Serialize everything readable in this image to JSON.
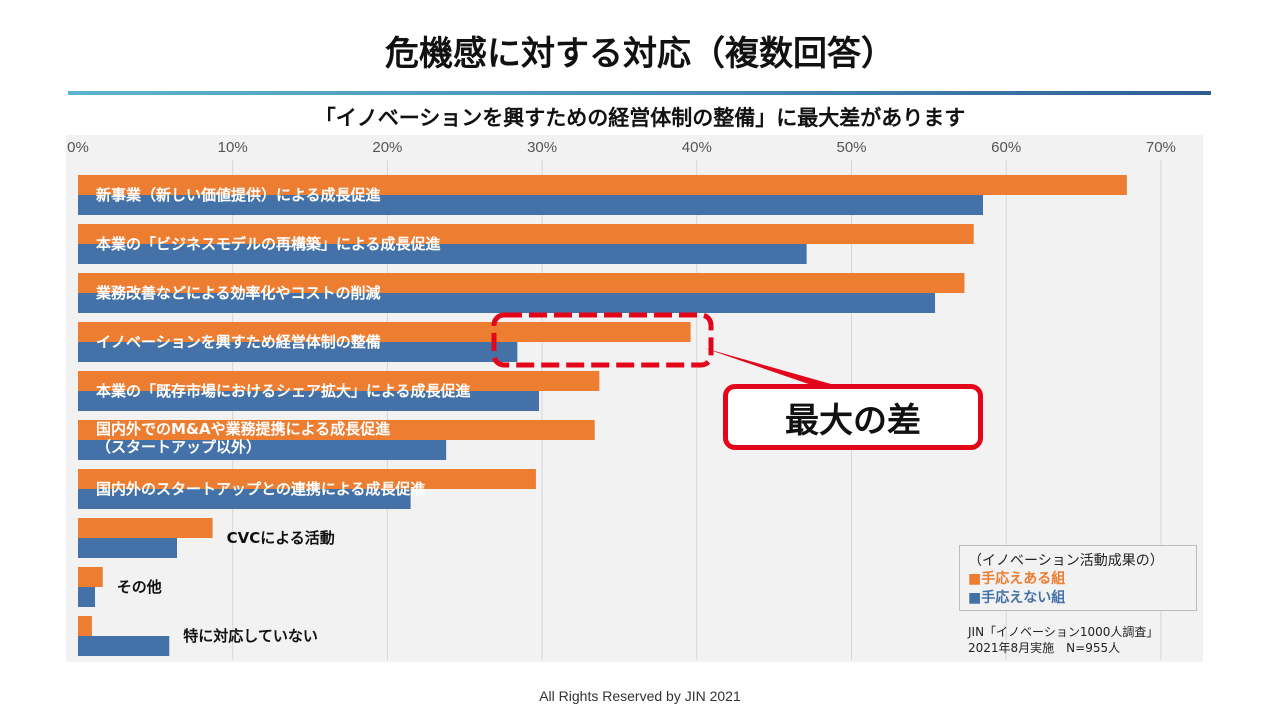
{
  "title": "危機感に対する対応（複数回答）",
  "subtitle": "「イノベーションを興すための経営体制の整備」に最大差があります",
  "footer": "All Rights Reserved by JIN 2021",
  "legend": {
    "title": "（イノベーション活動成果の）",
    "items": [
      "■手応えある組",
      "■手応えない組"
    ]
  },
  "source": [
    "JIN「イノベーション1000人調査」",
    "2021年8月実施　N=955人"
  ],
  "callout": "最大の差",
  "colors": {
    "series1": "#ed7d31",
    "series2": "#4472a8",
    "highlight": "#e3061b"
  },
  "chart_data": {
    "type": "bar",
    "orientation": "horizontal",
    "x_ticks": [
      "0%",
      "10%",
      "20%",
      "30%",
      "40%",
      "50%",
      "60%",
      "70%"
    ],
    "xlim": [
      0,
      72
    ],
    "grid": true,
    "categories": [
      [
        "新事業（新しい価値提供）による成長促進"
      ],
      [
        "本業の「ビジネスモデルの再構築」による成長促進"
      ],
      [
        "業務改善などによる効率化やコストの削減"
      ],
      [
        "イノベーションを興すため経営体制の整備"
      ],
      [
        "本業の「既存市場におけるシェア拡大」による成長促進"
      ],
      [
        "国内外でのM&Aや業務提携による成長促進",
        "（スタートアップ以外）"
      ],
      [
        "国内外のスタートアップとの連携による成長促進"
      ],
      [
        "CVCによる活動"
      ],
      [
        "その他"
      ],
      [
        "特に対応していない"
      ]
    ],
    "series": [
      {
        "name": "手応えある組",
        "values": [
          67.8,
          57.9,
          57.3,
          39.6,
          33.7,
          33.4,
          29.6,
          8.7,
          1.6,
          0.9
        ]
      },
      {
        "name": "手応えない組",
        "values": [
          58.5,
          47.1,
          55.4,
          28.4,
          29.8,
          23.8,
          21.5,
          6.4,
          1.1,
          5.9
        ]
      }
    ],
    "legend_position": "bottom-right"
  }
}
